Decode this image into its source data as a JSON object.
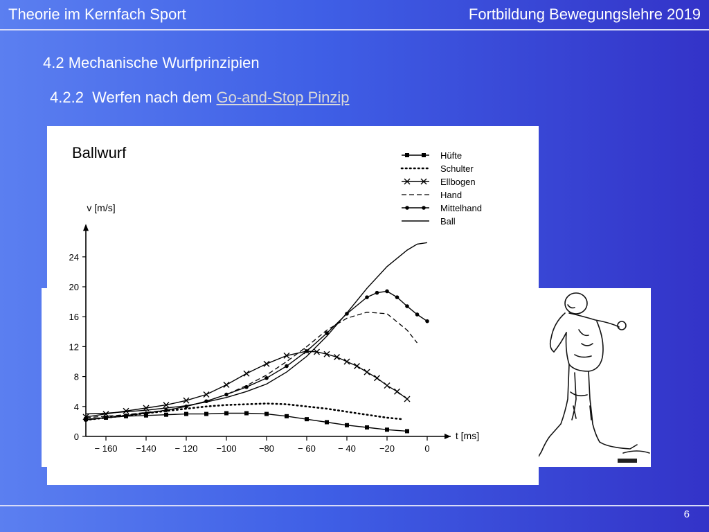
{
  "header": {
    "left_title": "Theorie im Kernfach Sport",
    "right_title": "Fortbildung Bewegungslehre 2019"
  },
  "section": {
    "heading": "4.2 Mechanische Wurfprinzipien",
    "subheading_prefix": "4.2.2  Werfen nach dem ",
    "subheading_link": "Go-and-Stop Pinzip"
  },
  "figure": {
    "label": "Ballwurf"
  },
  "footer": {
    "page_number": "6"
  },
  "chart_data": {
    "type": "line",
    "title": "Ballwurf",
    "xlabel": "t [ms]",
    "ylabel": "v [m/s]",
    "xlim": [
      -170,
      0
    ],
    "ylim": [
      0,
      26
    ],
    "x_ticks": [
      -160,
      -140,
      -120,
      -100,
      -80,
      -60,
      -40,
      -20,
      0
    ],
    "x_tick_labels": [
      "− 160",
      "−140",
      "− 120",
      "−100",
      "−80",
      "− 60",
      "− 40",
      "−20",
      "0"
    ],
    "y_ticks": [
      0,
      4,
      8,
      12,
      16,
      20,
      24
    ],
    "y_tick_labels": [
      "0",
      "4",
      "8",
      "12",
      "16",
      "20",
      "24"
    ],
    "legend_position": "top-right",
    "series": [
      {
        "name": "Hüfte",
        "style": "square-markers",
        "x": [
          -170,
          -160,
          -150,
          -140,
          -130,
          -120,
          -110,
          -100,
          -90,
          -80,
          -70,
          -60,
          -50,
          -40,
          -30,
          -20,
          -10
        ],
        "y": [
          2.3,
          2.5,
          2.7,
          2.8,
          2.9,
          3.0,
          3.0,
          3.1,
          3.1,
          3.0,
          2.7,
          2.3,
          1.9,
          1.5,
          1.2,
          0.9,
          0.7
        ]
      },
      {
        "name": "Schulter",
        "style": "dotted",
        "x": [
          -170,
          -160,
          -150,
          -140,
          -130,
          -120,
          -110,
          -100,
          -90,
          -80,
          -70,
          -60,
          -50,
          -40,
          -30,
          -20,
          -12
        ],
        "y": [
          2.2,
          2.5,
          2.8,
          3.1,
          3.4,
          3.7,
          4.0,
          4.2,
          4.3,
          4.4,
          4.3,
          4.0,
          3.7,
          3.3,
          2.9,
          2.5,
          2.3
        ]
      },
      {
        "name": "Ellbogen",
        "style": "x-markers",
        "x": [
          -170,
          -160,
          -150,
          -140,
          -130,
          -120,
          -110,
          -100,
          -90,
          -80,
          -70,
          -60,
          -55,
          -50,
          -45,
          -40,
          -35,
          -30,
          -25,
          -20,
          -15,
          -10
        ],
        "y": [
          2.6,
          3.0,
          3.4,
          3.8,
          4.2,
          4.8,
          5.6,
          6.9,
          8.4,
          9.7,
          10.8,
          11.4,
          11.3,
          11.0,
          10.6,
          10.0,
          9.4,
          8.6,
          7.8,
          6.8,
          6.0,
          5.0
        ]
      },
      {
        "name": "Hand",
        "style": "dashed",
        "x": [
          -170,
          -160,
          -150,
          -140,
          -130,
          -120,
          -110,
          -100,
          -90,
          -80,
          -70,
          -60,
          -50,
          -40,
          -30,
          -20,
          -10,
          -5
        ],
        "y": [
          2.5,
          2.7,
          2.9,
          3.2,
          3.5,
          4.0,
          4.7,
          5.6,
          6.8,
          8.2,
          10.0,
          12.0,
          14.2,
          15.8,
          16.6,
          16.4,
          14.2,
          12.5
        ]
      },
      {
        "name": "Mittelhand",
        "style": "dot-markers",
        "x": [
          -170,
          -160,
          -150,
          -140,
          -130,
          -120,
          -110,
          -100,
          -90,
          -80,
          -70,
          -60,
          -50,
          -40,
          -30,
          -25,
          -20,
          -15,
          -10,
          -5,
          0
        ],
        "y": [
          2.2,
          2.5,
          2.8,
          3.1,
          3.5,
          4.0,
          4.7,
          5.6,
          6.6,
          7.8,
          9.4,
          11.4,
          13.8,
          16.4,
          18.6,
          19.2,
          19.4,
          18.6,
          17.4,
          16.3,
          15.4
        ]
      },
      {
        "name": "Ball",
        "style": "solid",
        "x": [
          -170,
          -160,
          -150,
          -140,
          -130,
          -120,
          -110,
          -100,
          -90,
          -80,
          -70,
          -60,
          -50,
          -40,
          -30,
          -20,
          -10,
          -5,
          0
        ],
        "y": [
          3.0,
          3.1,
          3.3,
          3.5,
          3.8,
          4.1,
          4.6,
          5.2,
          6.0,
          7.0,
          8.6,
          10.7,
          13.4,
          16.5,
          19.8,
          22.7,
          24.9,
          25.7,
          25.9
        ]
      }
    ]
  }
}
